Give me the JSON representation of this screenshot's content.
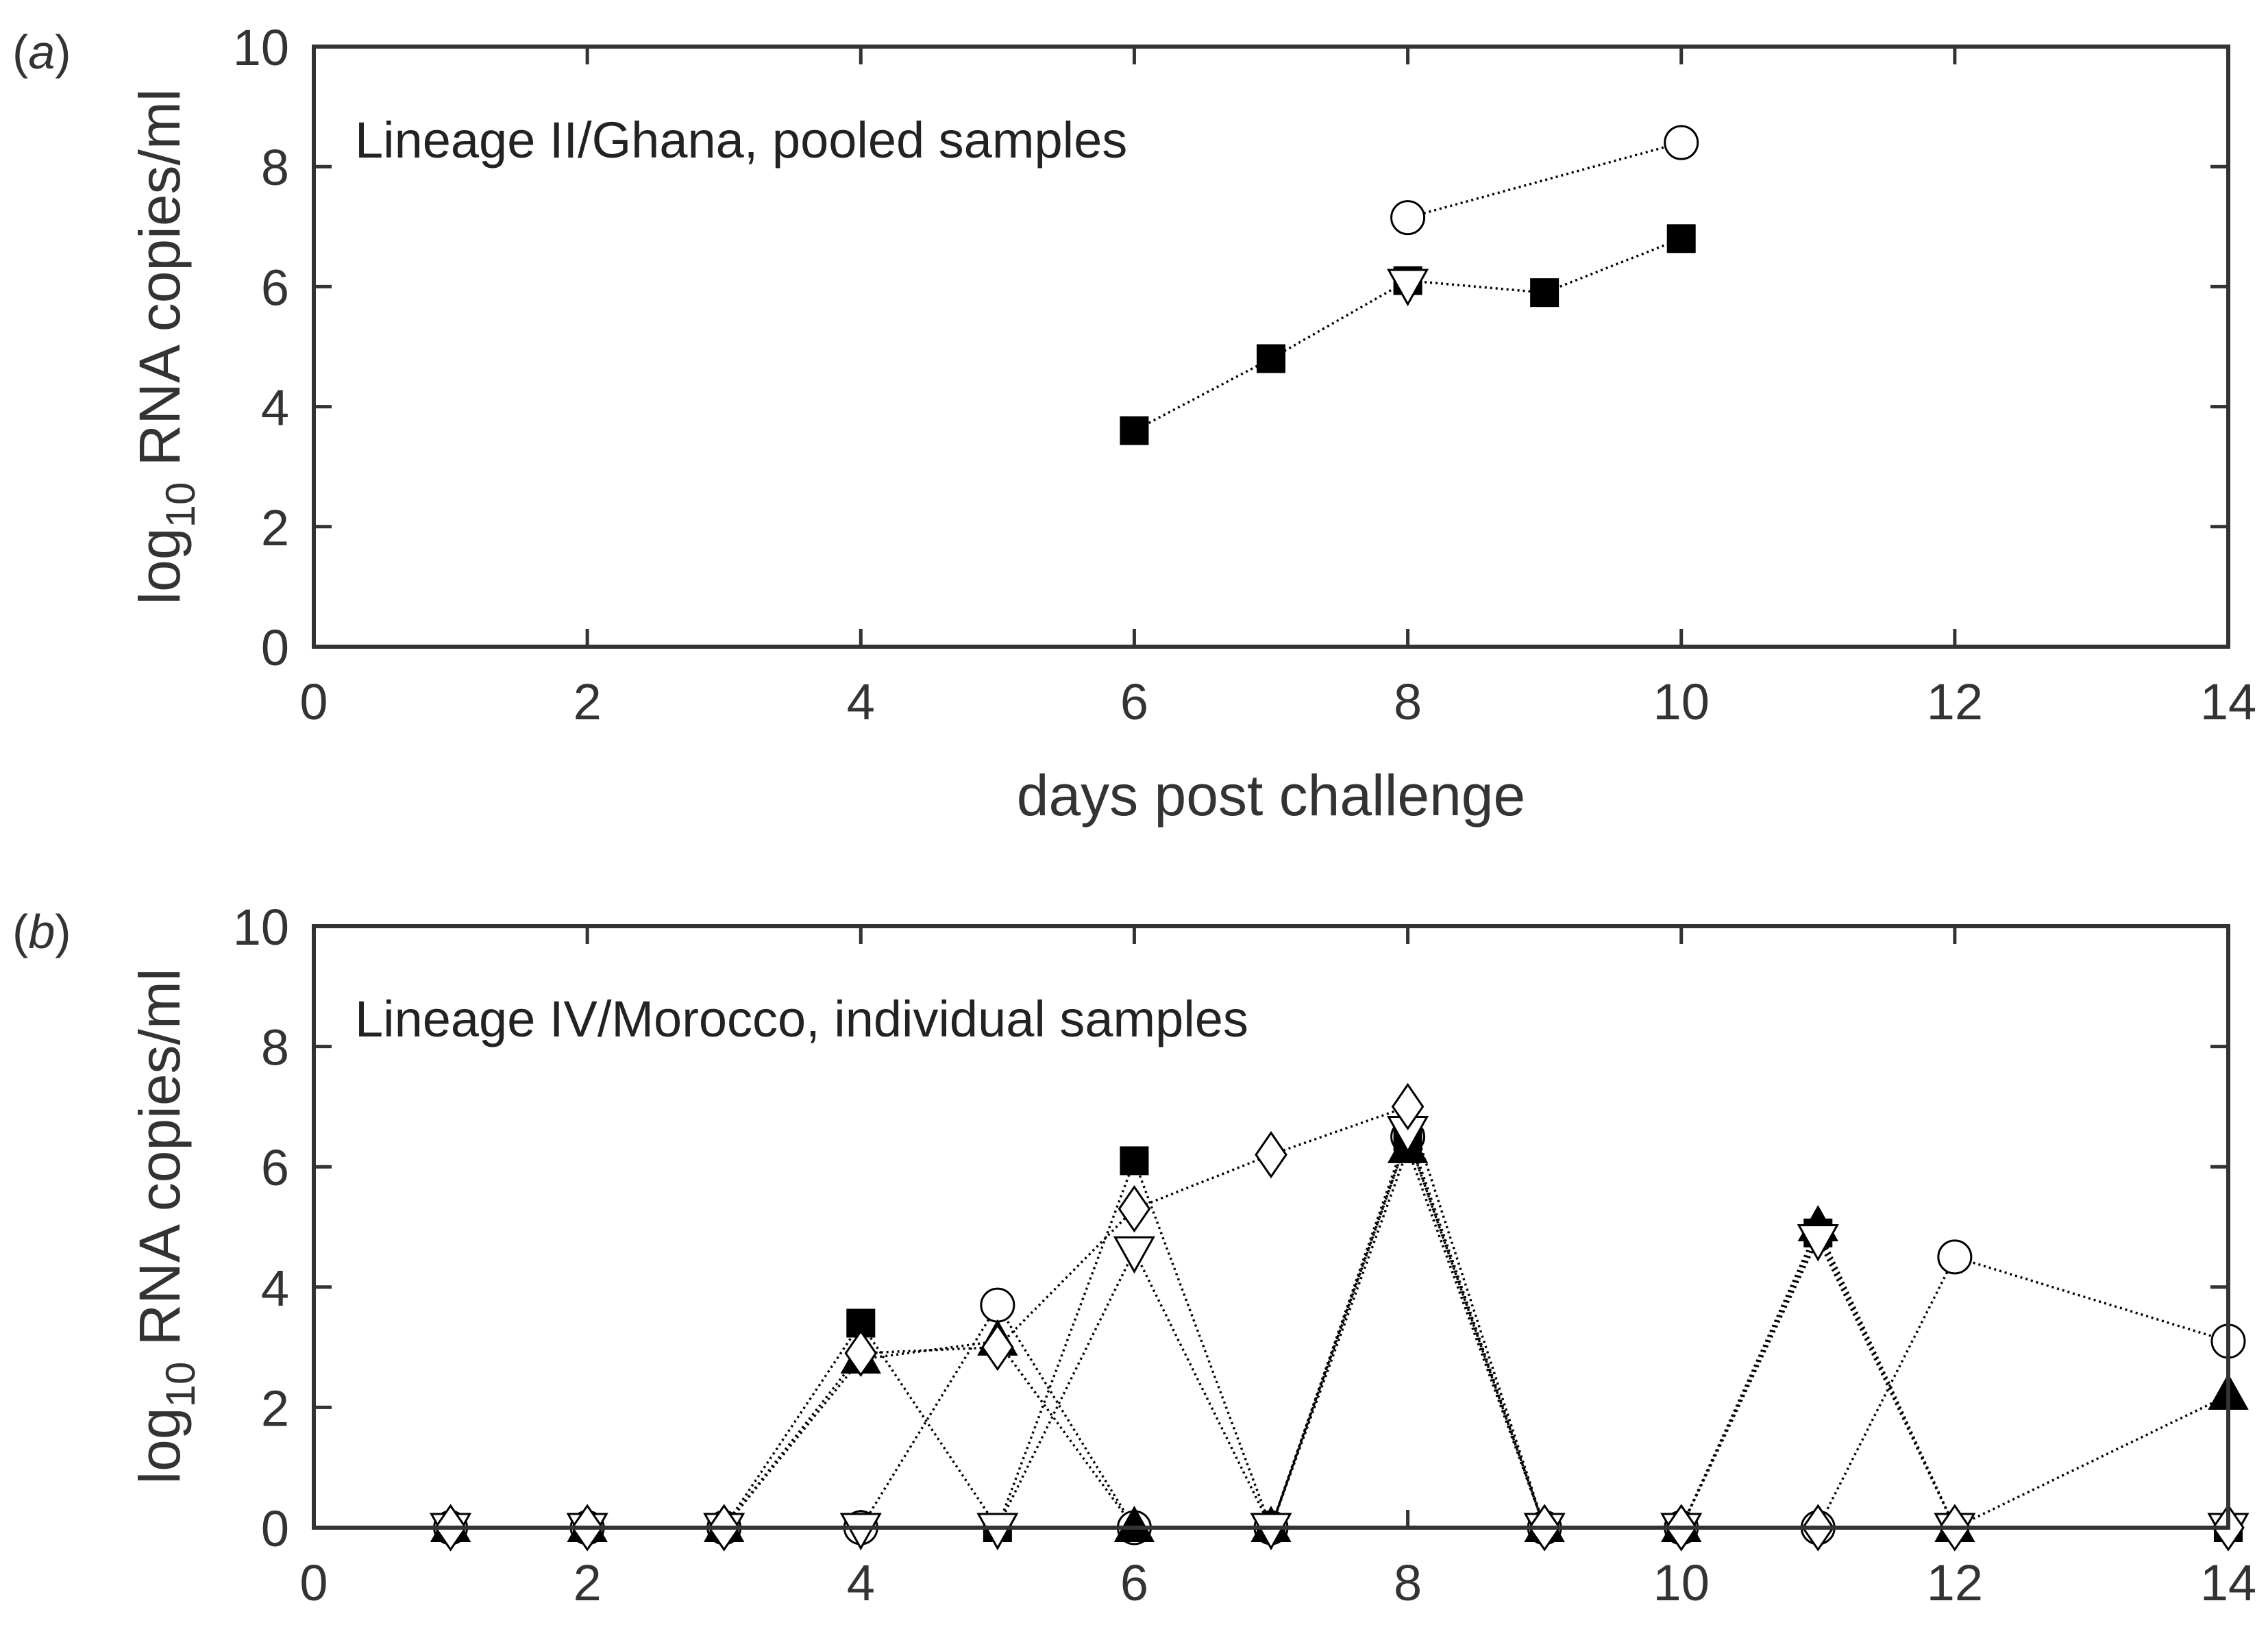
{
  "chart_data": [
    {
      "type": "line",
      "panel_label": "a",
      "annotation": "Lineage II/Ghana, pooled samples",
      "xlabel": "days post challenge",
      "ylabel_main": "log",
      "ylabel_sub": "10",
      "ylabel_rest": " RNA copies/ml",
      "xlim": [
        0,
        14
      ],
      "ylim": [
        0,
        10
      ],
      "xticks": [
        "0",
        "2",
        "4",
        "6",
        "8",
        "10",
        "12",
        "14"
      ],
      "yticks": [
        "0",
        "2",
        "4",
        "6",
        "8",
        "10"
      ],
      "series": [
        {
          "name": "open circle",
          "marker": "circle",
          "x": [
            8,
            10
          ],
          "y": [
            7.15,
            8.4
          ]
        },
        {
          "name": "filled square",
          "marker": "square",
          "x": [
            6,
            7,
            8,
            9,
            10
          ],
          "y": [
            3.6,
            4.8,
            6.1,
            5.9,
            6.8
          ]
        },
        {
          "name": "open down-triangle",
          "marker": "tri-down",
          "x": [
            8
          ],
          "y": [
            6.05
          ]
        }
      ]
    },
    {
      "type": "line",
      "panel_label": "b",
      "annotation": "Lineage IV/Morocco, individual samples",
      "xlabel": "",
      "ylabel_main": "log",
      "ylabel_sub": "10",
      "ylabel_rest": " RNA copies/ml",
      "xlim": [
        0,
        14
      ],
      "ylim": [
        0,
        10
      ],
      "xticks": [
        "0",
        "2",
        "4",
        "6",
        "8",
        "10",
        "12",
        "14"
      ],
      "yticks": [
        "0",
        "2",
        "4",
        "6",
        "8",
        "10"
      ],
      "series": [
        {
          "name": "open circle",
          "marker": "circle",
          "x": [
            1,
            2,
            3,
            4,
            5,
            6,
            7,
            8,
            9,
            10,
            11,
            12,
            14
          ],
          "y": [
            0,
            0,
            0,
            0,
            3.7,
            0,
            0,
            6.5,
            0,
            0,
            0,
            4.5,
            3.1
          ]
        },
        {
          "name": "filled square",
          "marker": "square",
          "x": [
            1,
            2,
            3,
            4,
            5,
            6,
            7,
            8,
            9,
            10,
            11,
            12,
            14
          ],
          "y": [
            0,
            0,
            0,
            3.4,
            0,
            6.1,
            0,
            6.5,
            0,
            0,
            4.9,
            0,
            0
          ]
        },
        {
          "name": "filled up-triangle",
          "marker": "tri-up",
          "x": [
            1,
            2,
            3,
            4,
            5,
            6,
            7,
            8,
            9,
            10,
            11,
            12,
            14
          ],
          "y": [
            0,
            0,
            0,
            2.8,
            3.1,
            0,
            0,
            6.3,
            0,
            0,
            5.0,
            0,
            2.2
          ]
        },
        {
          "name": "open down-triangle",
          "marker": "tri-down",
          "x": [
            1,
            2,
            3,
            4,
            5,
            6,
            7,
            8,
            9,
            10,
            11,
            12,
            14
          ],
          "y": [
            0,
            0,
            0,
            0,
            0,
            4.6,
            0,
            6.6,
            0,
            0,
            4.8,
            0,
            0
          ]
        },
        {
          "name": "open diamond",
          "marker": "diamond",
          "x": [
            1,
            2,
            3,
            4,
            5,
            6,
            7,
            8,
            9,
            10,
            11,
            12,
            14
          ],
          "y": [
            0,
            0,
            0,
            2.9,
            3.0,
            5.3,
            6.2,
            7.0,
            0,
            0,
            0,
            0,
            0
          ]
        }
      ]
    }
  ]
}
